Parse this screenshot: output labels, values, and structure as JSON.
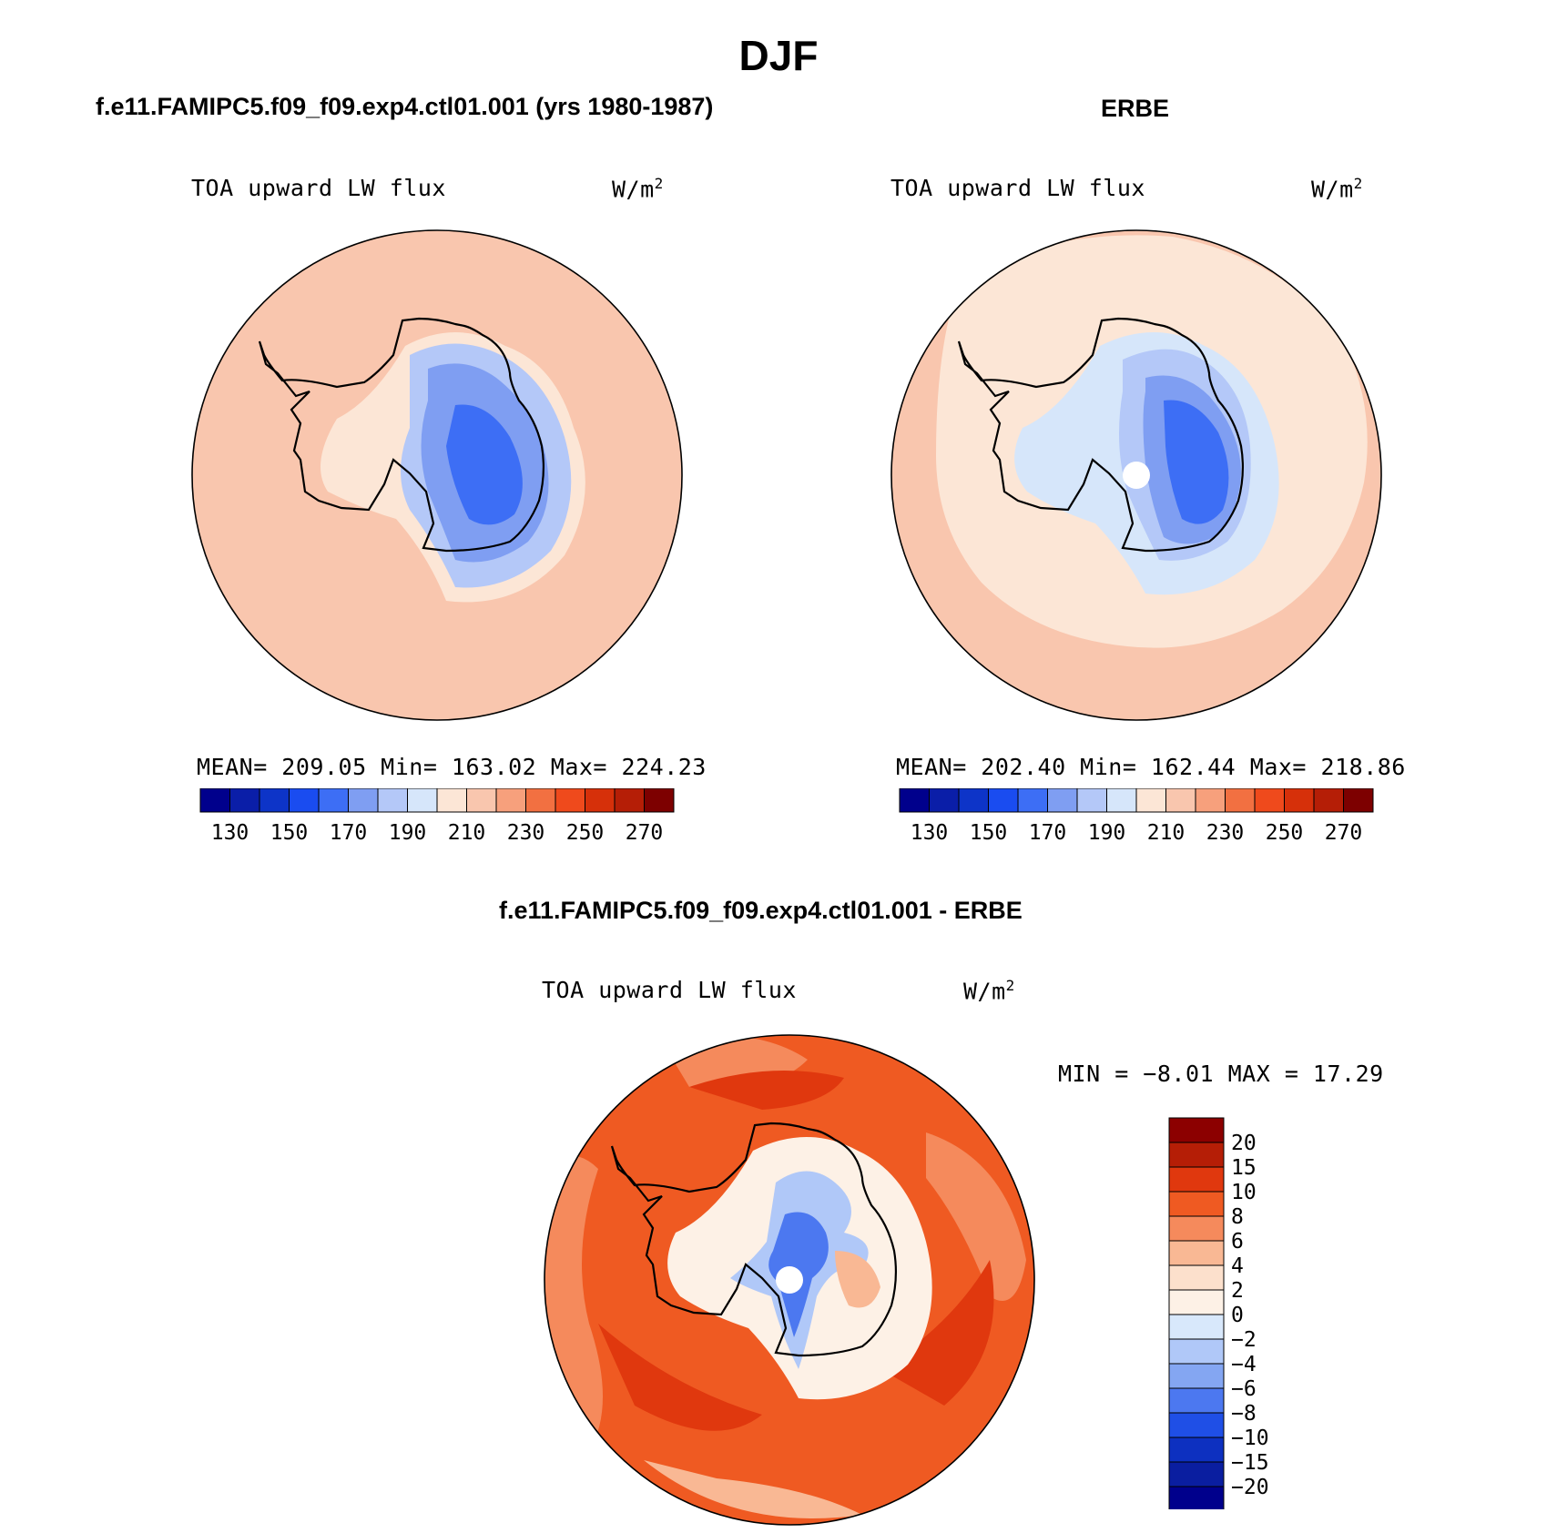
{
  "figure": {
    "title": "DJF"
  },
  "colors": {
    "c130": "#00008c",
    "c140": "#0a1ea8",
    "c150": "#0d34c8",
    "c160": "#1a4cf0",
    "c170": "#3d6ef5",
    "c180": "#7f9ef2",
    "c190": "#b4c8f8",
    "c200": "#d6e6fa",
    "c210": "#fce6d6",
    "c220": "#f9c6ae",
    "c230": "#f7a07c",
    "c240": "#f27041",
    "c250": "#ef4a1c",
    "c260": "#d6300a",
    "c270": "#b51e06",
    "c280": "#7d0000"
  },
  "panels": {
    "model": {
      "heading": "f.e11.FAMIPC5.f09_f09.exp4.ctl01.001 (yrs 1980-1987)",
      "variable": "TOA upward LW flux",
      "units_base": "W/m",
      "units_exp": "2",
      "stats": "MEAN= 209.05   Min= 163.02   Max= 224.23"
    },
    "obs": {
      "heading": "ERBE",
      "variable": "TOA upward LW flux",
      "units_base": "W/m",
      "units_exp": "2",
      "stats": "MEAN= 202.40   Min= 162.44   Max= 218.86"
    },
    "diff": {
      "heading": "f.e11.FAMIPC5.f09_f09.exp4.ctl01.001 - ERBE",
      "variable": "TOA upward LW flux",
      "units_base": "W/m",
      "units_exp": "2",
      "stats": "MIN =   −8.01  MAX =   17.29"
    }
  },
  "colorbar_abs": {
    "levels": [
      "130",
      "150",
      "170",
      "190",
      "210",
      "230",
      "250",
      "270"
    ],
    "colors": [
      "#00008c",
      "#0a1ea8",
      "#0d34c8",
      "#1a4cf0",
      "#3d6ef5",
      "#7f9ef2",
      "#b4c8f8",
      "#d6e6fa",
      "#fce6d6",
      "#f9c6ae",
      "#f7a07c",
      "#f27041",
      "#ef4a1c",
      "#d6300a",
      "#b51e06",
      "#7d0000"
    ]
  },
  "colorbar_diff": {
    "levels": [
      "20",
      "15",
      "10",
      "8",
      "6",
      "4",
      "2",
      "0",
      "−2",
      "−4",
      "−6",
      "−8",
      "−10",
      "−15",
      "−20"
    ],
    "colors": [
      "#8c0000",
      "#b51e06",
      "#e0380e",
      "#ef5a22",
      "#f58a5c",
      "#f9b894",
      "#fce0cc",
      "#fdf1e6",
      "#d8e8fb",
      "#b0c8f8",
      "#84a6f2",
      "#4c78f0",
      "#1f4fe6",
      "#0d30c0",
      "#0a1ea0",
      "#00008c"
    ]
  }
}
